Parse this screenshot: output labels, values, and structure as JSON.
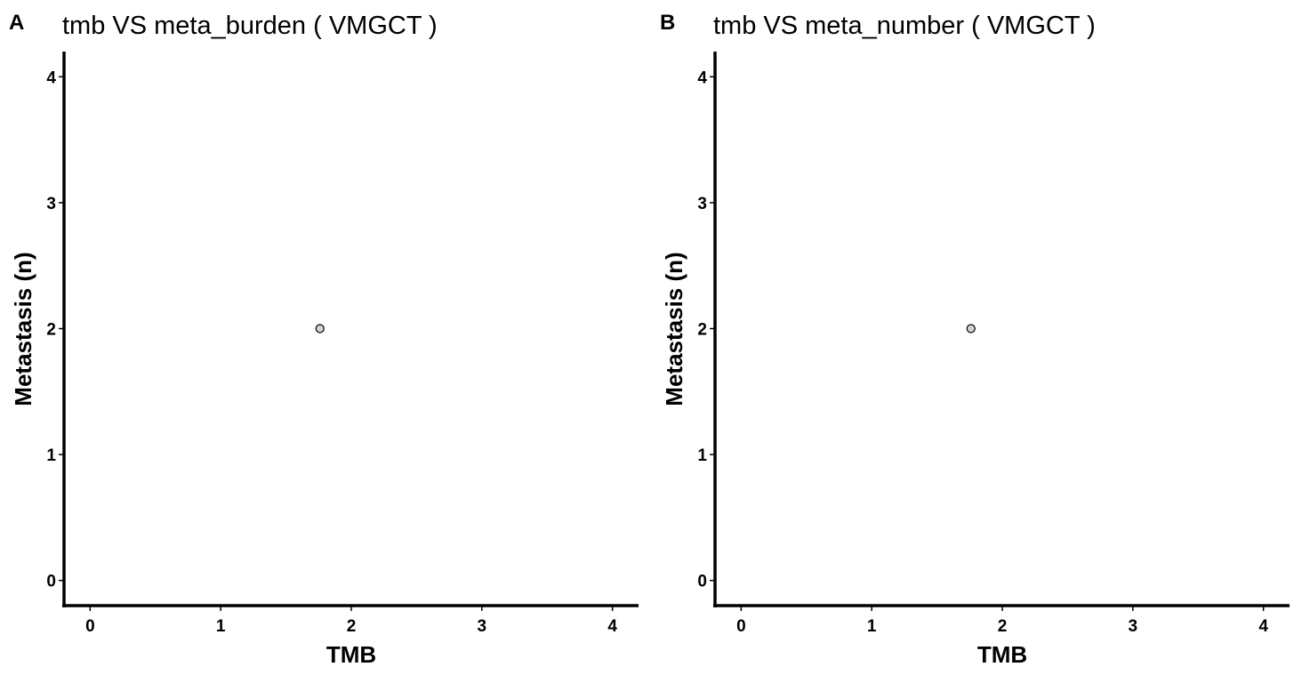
{
  "chart_data": [
    {
      "type": "scatter",
      "panel_tag": "A",
      "title": "tmb  VS  meta_burden ( VMGCT )",
      "xlabel": "TMB",
      "ylabel": "Metastasis (n)",
      "xlim": [
        -0.2,
        4.2
      ],
      "ylim": [
        -0.2,
        4.2
      ],
      "xticks": [
        0,
        1,
        2,
        3,
        4
      ],
      "yticks": [
        0,
        1,
        2,
        3,
        4
      ],
      "grid": false,
      "point_fill": "#d3d3d3",
      "point_stroke": "#000000",
      "points": [
        {
          "x": 1.76,
          "y": 2
        }
      ]
    },
    {
      "type": "scatter",
      "panel_tag": "B",
      "title": "tmb  VS  meta_number ( VMGCT )",
      "xlabel": "TMB",
      "ylabel": "Metastasis (n)",
      "xlim": [
        -0.2,
        4.2
      ],
      "ylim": [
        -0.2,
        4.2
      ],
      "xticks": [
        0,
        1,
        2,
        3,
        4
      ],
      "yticks": [
        0,
        1,
        2,
        3,
        4
      ],
      "grid": false,
      "point_fill": "#d3d3d3",
      "point_stroke": "#000000",
      "points": [
        {
          "x": 1.76,
          "y": 2
        }
      ]
    }
  ]
}
